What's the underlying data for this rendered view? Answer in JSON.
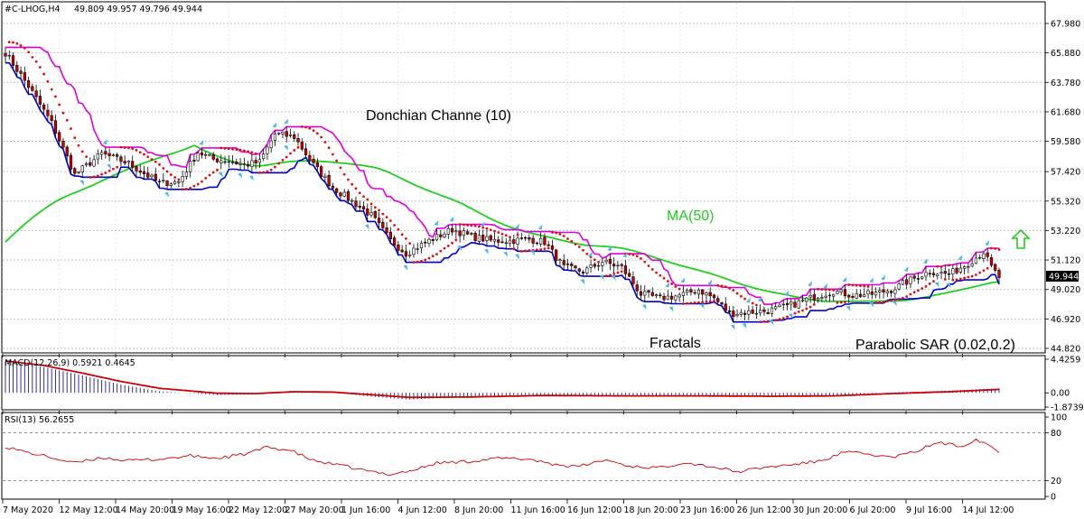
{
  "header": {
    "symbol": "#C-LHOG,H4",
    "ohlc": "49.809 49.957 49.796 49.944"
  },
  "annotations": {
    "donchian": "Donchian Channe (10)",
    "ma": "MA(50)",
    "fractals": "Fractals",
    "sar": "Parabolic SAR (0.02,0.2)"
  },
  "colors": {
    "bull": "#ffffff",
    "bear": "#d00000",
    "ma": "#22cc22",
    "donchian_upper": "#dd00dd",
    "donchian_lower": "#0000cc",
    "sar": "#dd1111",
    "fractal": "#4fb6e8",
    "macd_hist": "#1a1a8c",
    "macd_signal": "#cc0000",
    "rsi": "#cc0000",
    "arrow": "#22cc22"
  },
  "chart_data": [
    {
      "type": "candlestick",
      "panel": "price",
      "y_ticks": [
        "67.980",
        "65.880",
        "63.780",
        "61.680",
        "59.580",
        "57.420",
        "55.320",
        "53.220",
        "51.120",
        "49.020",
        "46.920",
        "44.820"
      ],
      "ylim": [
        44.82,
        67.98
      ],
      "current_price": "49.944",
      "x_ticks": [
        "7 May 2020",
        "12 May 12:00",
        "14 May 20:00",
        "19 May 16:00",
        "22 May 12:00",
        "27 May 20:00",
        "1 Jun 16:00",
        "4 Jun 12:00",
        "8 Jun 20:00",
        "11 Jun 16:00",
        "16 Jun 12:00",
        "18 Jun 20:00",
        "23 Jun 16:00",
        "26 Jun 12:00",
        "30 Jun 20:00",
        "6 Jul 20:00",
        "9 Jul 16:00",
        "14 Jul 12:00"
      ],
      "anchors": [
        [
          0,
          65.9
        ],
        [
          6,
          63.5
        ],
        [
          12,
          60.9
        ],
        [
          18,
          57.2
        ],
        [
          25,
          58.7
        ],
        [
          32,
          58.0
        ],
        [
          40,
          56.6
        ],
        [
          45,
          56.7
        ],
        [
          50,
          58.8
        ],
        [
          54,
          58.3
        ],
        [
          58,
          58.2
        ],
        [
          62,
          57.9
        ],
        [
          66,
          58.1
        ],
        [
          70,
          60.1
        ],
        [
          75,
          59.9
        ],
        [
          80,
          57.9
        ],
        [
          85,
          56.3
        ],
        [
          90,
          55.3
        ],
        [
          95,
          54.3
        ],
        [
          100,
          52.5
        ],
        [
          104,
          51.6
        ],
        [
          110,
          52.5
        ],
        [
          116,
          53.3
        ],
        [
          121,
          52.8
        ],
        [
          126,
          52.5
        ],
        [
          131,
          52.5
        ],
        [
          136,
          52.6
        ],
        [
          140,
          52.4
        ],
        [
          145,
          50.6
        ],
        [
          150,
          50.3
        ],
        [
          155,
          51.0
        ],
        [
          160,
          50.6
        ],
        [
          165,
          48.7
        ],
        [
          170,
          48.4
        ],
        [
          175,
          48.6
        ],
        [
          180,
          49.0
        ],
        [
          184,
          48.4
        ],
        [
          188,
          47.3
        ],
        [
          193,
          47.4
        ],
        [
          198,
          47.5
        ],
        [
          204,
          47.9
        ],
        [
          210,
          48.5
        ],
        [
          215,
          48.9
        ],
        [
          220,
          48.6
        ],
        [
          225,
          48.7
        ],
        [
          230,
          49.0
        ],
        [
          235,
          49.7
        ],
        [
          240,
          50.3
        ],
        [
          245,
          50.1
        ],
        [
          250,
          50.9
        ],
        [
          254,
          51.7
        ],
        [
          256,
          50.6
        ],
        [
          258,
          49.9
        ]
      ],
      "ma_period": 50,
      "donchian_period": 10,
      "sar": [
        0.02,
        0.2
      ]
    },
    {
      "type": "bar_line",
      "panel": "macd",
      "label": "MACD(12,26,9) 0.5921 0.4645",
      "y_ticks": [
        "4.4259",
        "0.00",
        "-1.8739"
      ],
      "ylim": [
        -1.8739,
        4.4259
      ],
      "anchors": [
        [
          0,
          4.1
        ],
        [
          10,
          3.4
        ],
        [
          20,
          2.3
        ],
        [
          30,
          1.1
        ],
        [
          40,
          0.2
        ],
        [
          55,
          -0.3
        ],
        [
          65,
          -0.2
        ],
        [
          75,
          0.25
        ],
        [
          85,
          0.05
        ],
        [
          95,
          -0.5
        ],
        [
          105,
          -0.9
        ],
        [
          120,
          -0.5
        ],
        [
          140,
          -0.25
        ],
        [
          160,
          -0.45
        ],
        [
          180,
          -0.35
        ],
        [
          200,
          -0.55
        ],
        [
          215,
          -0.35
        ],
        [
          230,
          0.05
        ],
        [
          245,
          0.3
        ],
        [
          258,
          0.6
        ]
      ],
      "signal_anchors": [
        [
          0,
          4.2
        ],
        [
          10,
          3.6
        ],
        [
          20,
          2.6
        ],
        [
          30,
          1.5
        ],
        [
          40,
          0.6
        ],
        [
          55,
          -0.05
        ],
        [
          65,
          -0.1
        ],
        [
          75,
          0.15
        ],
        [
          85,
          0.1
        ],
        [
          95,
          -0.25
        ],
        [
          105,
          -0.6
        ],
        [
          120,
          -0.55
        ],
        [
          140,
          -0.35
        ],
        [
          160,
          -0.4
        ],
        [
          180,
          -0.4
        ],
        [
          200,
          -0.45
        ],
        [
          215,
          -0.4
        ],
        [
          230,
          -0.1
        ],
        [
          245,
          0.15
        ],
        [
          258,
          0.45
        ]
      ]
    },
    {
      "type": "line",
      "panel": "rsi",
      "label": "RSI(13) 56.2655",
      "y_ticks": [
        "100",
        "80",
        "20",
        "0"
      ],
      "ylim": [
        0,
        100
      ],
      "levels": [
        80,
        20
      ],
      "anchors": [
        [
          0,
          63
        ],
        [
          5,
          56
        ],
        [
          10,
          51
        ],
        [
          18,
          42
        ],
        [
          25,
          49
        ],
        [
          32,
          45
        ],
        [
          40,
          47
        ],
        [
          48,
          51
        ],
        [
          55,
          48
        ],
        [
          62,
          53
        ],
        [
          68,
          62
        ],
        [
          74,
          58
        ],
        [
          80,
          45
        ],
        [
          88,
          38
        ],
        [
          95,
          31
        ],
        [
          100,
          28
        ],
        [
          106,
          33
        ],
        [
          112,
          42
        ],
        [
          120,
          44
        ],
        [
          128,
          48
        ],
        [
          136,
          47
        ],
        [
          142,
          41
        ],
        [
          148,
          37
        ],
        [
          156,
          46
        ],
        [
          162,
          38
        ],
        [
          170,
          36
        ],
        [
          176,
          43
        ],
        [
          184,
          37
        ],
        [
          190,
          31
        ],
        [
          198,
          37
        ],
        [
          206,
          41
        ],
        [
          212,
          45
        ],
        [
          218,
          56
        ],
        [
          224,
          53
        ],
        [
          230,
          49
        ],
        [
          236,
          56
        ],
        [
          242,
          68
        ],
        [
          248,
          63
        ],
        [
          252,
          72
        ],
        [
          255,
          66
        ],
        [
          258,
          56
        ]
      ]
    }
  ]
}
